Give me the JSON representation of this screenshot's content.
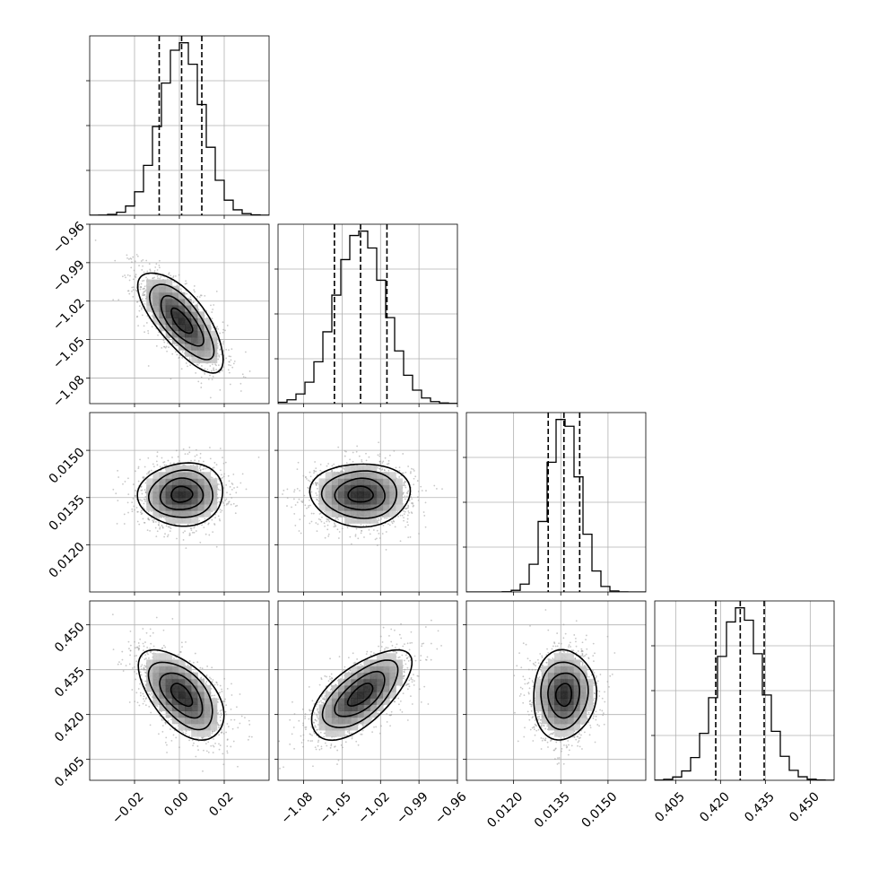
{
  "chart_data": {
    "type": "corner",
    "parameters": [
      {
        "range": [
          -0.04,
          0.04
        ],
        "ticks": [
          -0.02,
          0.0,
          0.02
        ],
        "tick_labels": [
          "−0.02",
          "0.00",
          "0.02"
        ],
        "mean": 0.001,
        "sd": 0.0095,
        "quantiles": [
          -0.009,
          0.001,
          0.01
        ]
      },
      {
        "range": [
          -1.1,
          -0.96
        ],
        "ticks": [
          -1.08,
          -1.05,
          -1.02,
          -0.99,
          -0.96
        ],
        "tick_labels": [
          "−1.08",
          "−1.05",
          "−1.02",
          "−0.99",
          "−0.96"
        ],
        "mean": -1.0356,
        "sd": 0.0195,
        "quantiles": [
          -1.056,
          -1.0356,
          -1.015
        ]
      },
      {
        "range": [
          0.0105,
          0.0162
        ],
        "ticks": [
          0.012,
          0.0135,
          0.015
        ],
        "tick_labels": [
          "0.0120",
          "0.0135",
          "0.0150"
        ],
        "mean": 0.0136,
        "sd": 0.0005,
        "quantiles": [
          0.0131,
          0.0136,
          0.0141
        ]
      },
      {
        "range": [
          0.398,
          0.458
        ],
        "ticks": [
          0.405,
          0.42,
          0.435,
          0.45
        ],
        "tick_labels": [
          "0.405",
          "0.420",
          "0.435",
          "0.450"
        ],
        "mean": 0.4266,
        "sd": 0.0075,
        "quantiles": [
          0.4184,
          0.4266,
          0.4346
        ]
      }
    ],
    "row_tick_labels": {
      "1": [
        "−0.96",
        "−0.99",
        "−1.02",
        "−1.05",
        "−1.08"
      ],
      "2": [
        "0.0150",
        "0.0135",
        "0.0120"
      ],
      "3": [
        "0.450",
        "0.435",
        "0.420",
        "0.405"
      ]
    },
    "correlations": [
      [
        1.0,
        -0.72,
        0.05,
        -0.55
      ],
      [
        -0.72,
        1.0,
        0.0,
        0.65
      ],
      [
        0.05,
        0.0,
        1.0,
        0.05
      ],
      [
        -0.55,
        0.65,
        0.05,
        1.0
      ]
    ],
    "histogram_bins": 20,
    "contour_levels": 4,
    "grid": true,
    "colors": {
      "contour": "#000000",
      "points": "#9a9a9a",
      "density_max": "#111111"
    }
  }
}
